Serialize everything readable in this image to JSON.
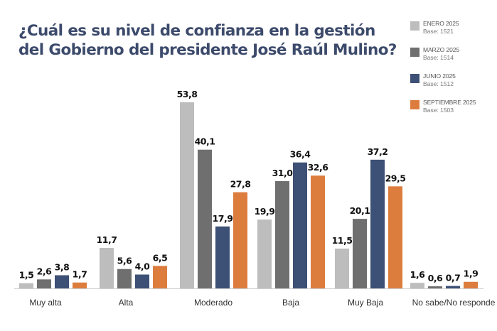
{
  "chart_data": {
    "type": "bar",
    "title": "¿Cuál es su nivel de confianza en la gestión del Gobierno del presidente José Raúl Mulino?",
    "title_lines": [
      "¿Cuál es su nivel de confianza en la gestión",
      "del Gobierno del presidente José Raúl Mulino?"
    ],
    "xlabel": "",
    "ylabel": "",
    "ylim": [
      0,
      55
    ],
    "grid": false,
    "legend_position": "top-right",
    "categories": [
      "Muy alta",
      "Alta",
      "Moderado",
      "Baja",
      "Muy Baja",
      "No sabe/No responde"
    ],
    "series": [
      {
        "name": "ENERO 2025",
        "base": "Base: 1521",
        "color": "#bdbdbd",
        "values": [
          1.5,
          11.7,
          53.8,
          19.9,
          11.5,
          1.6
        ],
        "labels": [
          "1,5",
          "11,7",
          "53,8",
          "19,9",
          "11,5",
          "1,6"
        ]
      },
      {
        "name": "MARZO 2025",
        "base": "Base: 1514",
        "color": "#6f6f6f",
        "values": [
          2.6,
          5.6,
          40.1,
          31.0,
          20.1,
          0.6
        ],
        "labels": [
          "2,6",
          "5,6",
          "40,1",
          "31,0",
          "20,1",
          "0,6"
        ]
      },
      {
        "name": "JUNIO 2025",
        "base": "Base: 1512",
        "color": "#3d5075",
        "values": [
          3.8,
          4.0,
          17.9,
          36.4,
          37.2,
          0.7
        ],
        "labels": [
          "3,8",
          "4,0",
          "17,9",
          "36,4",
          "37,2",
          "0,7"
        ]
      },
      {
        "name": "SEPTIEMBRE 2025",
        "base": "Base: 1503",
        "color": "#dc7d3e",
        "values": [
          1.7,
          6.5,
          27.8,
          32.6,
          29.5,
          1.9
        ],
        "labels": [
          "1,7",
          "6,5",
          "27,8",
          "32,6",
          "29,5",
          "1,9"
        ]
      }
    ]
  }
}
